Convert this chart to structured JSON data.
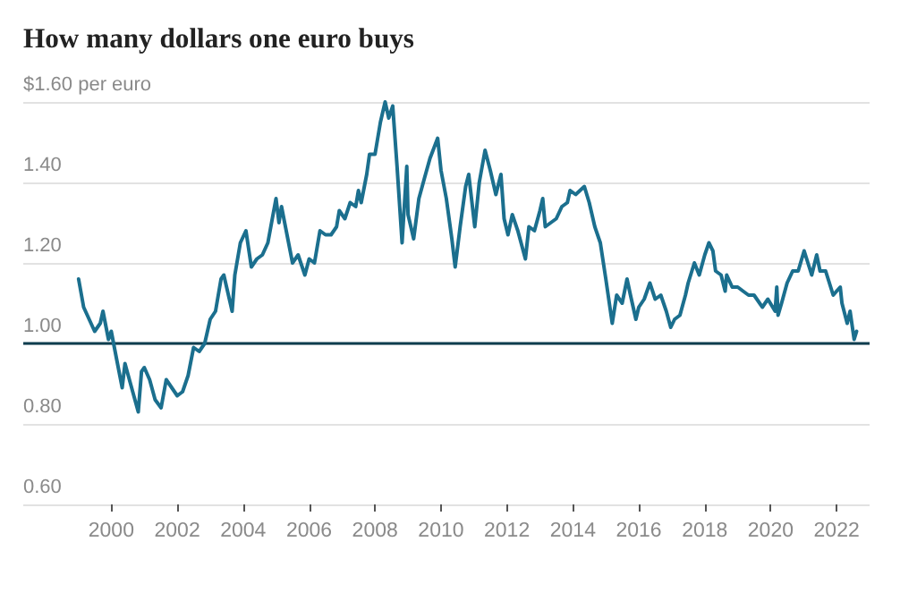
{
  "chart_data": {
    "type": "line",
    "title": "How many dollars one euro buys",
    "x": [
      "1999-01-04",
      "1999-03",
      "1999-05",
      "1999-07",
      "1999-09",
      "1999-10",
      "1999-12",
      "2000-01",
      "2000-03",
      "2000-05",
      "2000-06",
      "2000-08",
      "2000-10-26",
      "2000-12",
      "2001-01",
      "2001-03",
      "2001-05",
      "2001-07-06",
      "2001-09",
      "2001-11",
      "2002-01",
      "2002-03",
      "2002-05",
      "2002-07",
      "2002-09",
      "2002-11",
      "2003-01",
      "2003-03",
      "2003-05",
      "2003-06",
      "2003-09",
      "2003-10",
      "2003-12",
      "2004-02",
      "2004-04",
      "2004-06",
      "2004-08",
      "2004-10",
      "2004-12-30",
      "2005-02",
      "2005-03",
      "2005-05",
      "2005-07",
      "2005-09",
      "2005-11-15",
      "2006-01",
      "2006-03",
      "2006-05",
      "2006-07",
      "2006-09",
      "2006-11",
      "2006-12",
      "2007-02",
      "2007-04",
      "2007-06",
      "2007-07",
      "2007-08",
      "2007-10",
      "2007-11",
      "2008-01",
      "2008-03",
      "2008-04-22",
      "2008-06",
      "2008-07-15",
      "2008-09",
      "2008-10-27",
      "2008-11",
      "2008-12-18",
      "2009-01",
      "2009-03-04",
      "2009-05",
      "2009-07",
      "2009-09",
      "2009-11-25",
      "2010-01",
      "2010-03",
      "2010-05",
      "2010-06-07",
      "2010-08",
      "2010-10",
      "2010-11-04",
      "2011-01-10",
      "2011-03",
      "2011-05-04",
      "2011-07",
      "2011-09",
      "2011-10-27",
      "2011-12",
      "2012-01-13",
      "2012-03",
      "2012-05",
      "2012-07-24",
      "2012-09",
      "2012-11",
      "2013-01",
      "2013-02",
      "2013-03",
      "2013-05",
      "2013-07",
      "2013-09",
      "2013-11",
      "2013-12",
      "2014-02",
      "2014-05-08",
      "2014-07",
      "2014-09",
      "2014-11",
      "2015-01",
      "2015-03-13",
      "2015-05",
      "2015-07",
      "2015-08-24",
      "2015-10",
      "2015-11-30",
      "2016-01",
      "2016-03",
      "2016-05-03",
      "2016-07",
      "2016-09",
      "2016-11",
      "2016-12-20",
      "2017-02",
      "2017-04",
      "2017-06",
      "2017-07",
      "2017-09-08",
      "2017-11",
      "2018-01",
      "2018-02-16",
      "2018-04",
      "2018-05",
      "2018-07",
      "2018-08-15",
      "2018-09",
      "2018-11",
      "2019-01",
      "2019-03",
      "2019-05",
      "2019-07",
      "2019-09",
      "2019-10-01",
      "2019-12",
      "2020-02-20",
      "2020-03-09",
      "2020-03-23",
      "2020-05",
      "2020-07",
      "2020-09",
      "2020-11",
      "2021-01-06",
      "2021-03-31",
      "2021-05-25",
      "2021-07",
      "2021-09",
      "2021-11-24",
      "2022-01",
      "2022-02-10",
      "2022-03",
      "2022-04-28",
      "2022-05-30",
      "2022-07-14",
      "2022-08-10"
    ],
    "values": [
      1.16,
      1.09,
      1.06,
      1.03,
      1.05,
      1.08,
      1.01,
      1.03,
      0.96,
      0.89,
      0.95,
      0.9,
      0.83,
      0.93,
      0.94,
      0.91,
      0.86,
      0.84,
      0.91,
      0.89,
      0.87,
      0.88,
      0.92,
      0.99,
      0.98,
      1.0,
      1.06,
      1.08,
      1.16,
      1.17,
      1.08,
      1.17,
      1.25,
      1.28,
      1.19,
      1.21,
      1.22,
      1.25,
      1.36,
      1.3,
      1.34,
      1.27,
      1.2,
      1.22,
      1.17,
      1.21,
      1.2,
      1.28,
      1.27,
      1.27,
      1.29,
      1.33,
      1.31,
      1.35,
      1.34,
      1.38,
      1.35,
      1.42,
      1.47,
      1.47,
      1.55,
      1.6,
      1.56,
      1.59,
      1.44,
      1.25,
      1.27,
      1.44,
      1.32,
      1.26,
      1.36,
      1.41,
      1.46,
      1.51,
      1.43,
      1.36,
      1.26,
      1.19,
      1.29,
      1.39,
      1.42,
      1.29,
      1.4,
      1.48,
      1.43,
      1.37,
      1.42,
      1.31,
      1.27,
      1.32,
      1.28,
      1.21,
      1.29,
      1.28,
      1.33,
      1.36,
      1.29,
      1.3,
      1.31,
      1.34,
      1.35,
      1.38,
      1.37,
      1.39,
      1.35,
      1.29,
      1.25,
      1.16,
      1.05,
      1.12,
      1.1,
      1.16,
      1.12,
      1.06,
      1.09,
      1.11,
      1.15,
      1.11,
      1.12,
      1.08,
      1.04,
      1.06,
      1.07,
      1.12,
      1.15,
      1.2,
      1.17,
      1.22,
      1.25,
      1.23,
      1.18,
      1.17,
      1.13,
      1.17,
      1.14,
      1.14,
      1.13,
      1.12,
      1.12,
      1.1,
      1.09,
      1.11,
      1.08,
      1.14,
      1.07,
      1.1,
      1.15,
      1.18,
      1.18,
      1.23,
      1.17,
      1.22,
      1.18,
      1.18,
      1.12,
      1.13,
      1.14,
      1.1,
      1.05,
      1.08,
      1.01,
      1.03
    ],
    "color": "#1b6f8e",
    "xlim": [
      "1997-05",
      "2023-01"
    ],
    "xticks": [
      "2000",
      "2002",
      "2004",
      "2006",
      "2008",
      "2010",
      "2012",
      "2014",
      "2016",
      "2018",
      "2020",
      "2022"
    ],
    "ylim": [
      0.6,
      1.6
    ],
    "yticks": [
      {
        "value": 0.6,
        "label": "0.60"
      },
      {
        "value": 0.8,
        "label": "0.80"
      },
      {
        "value": 1.0,
        "label": "1.00"
      },
      {
        "value": 1.2,
        "label": "1.20"
      },
      {
        "value": 1.4,
        "label": "1.40"
      },
      {
        "value": 1.6,
        "label": "$1.60 per euro"
      }
    ],
    "grid": "y",
    "ref_lines": [
      {
        "axis": "y",
        "value": 1.0,
        "label": null,
        "color": "#0e3d4e"
      }
    ]
  }
}
